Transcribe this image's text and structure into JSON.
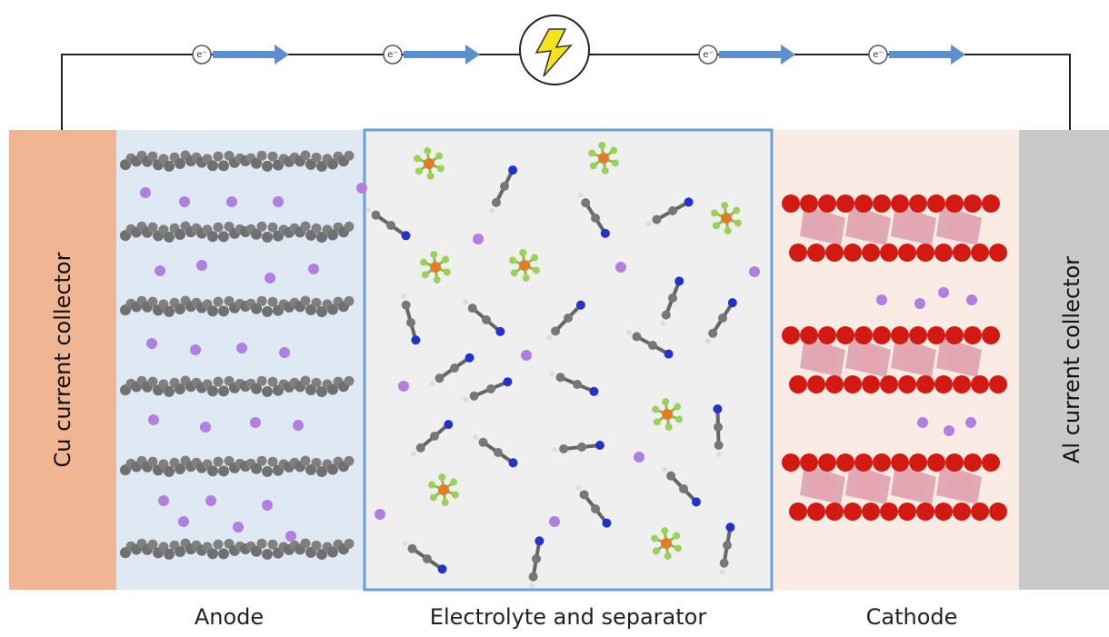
{
  "electrons": [
    "e⁻",
    "e⁻",
    "e⁻",
    "e⁻"
  ],
  "regions": {
    "cu_collector": "Cu current collector",
    "anode": "Anode",
    "electrolyte": "Electrolyte and separator",
    "cathode": "Cathode",
    "al_collector": "Al current collector"
  }
}
